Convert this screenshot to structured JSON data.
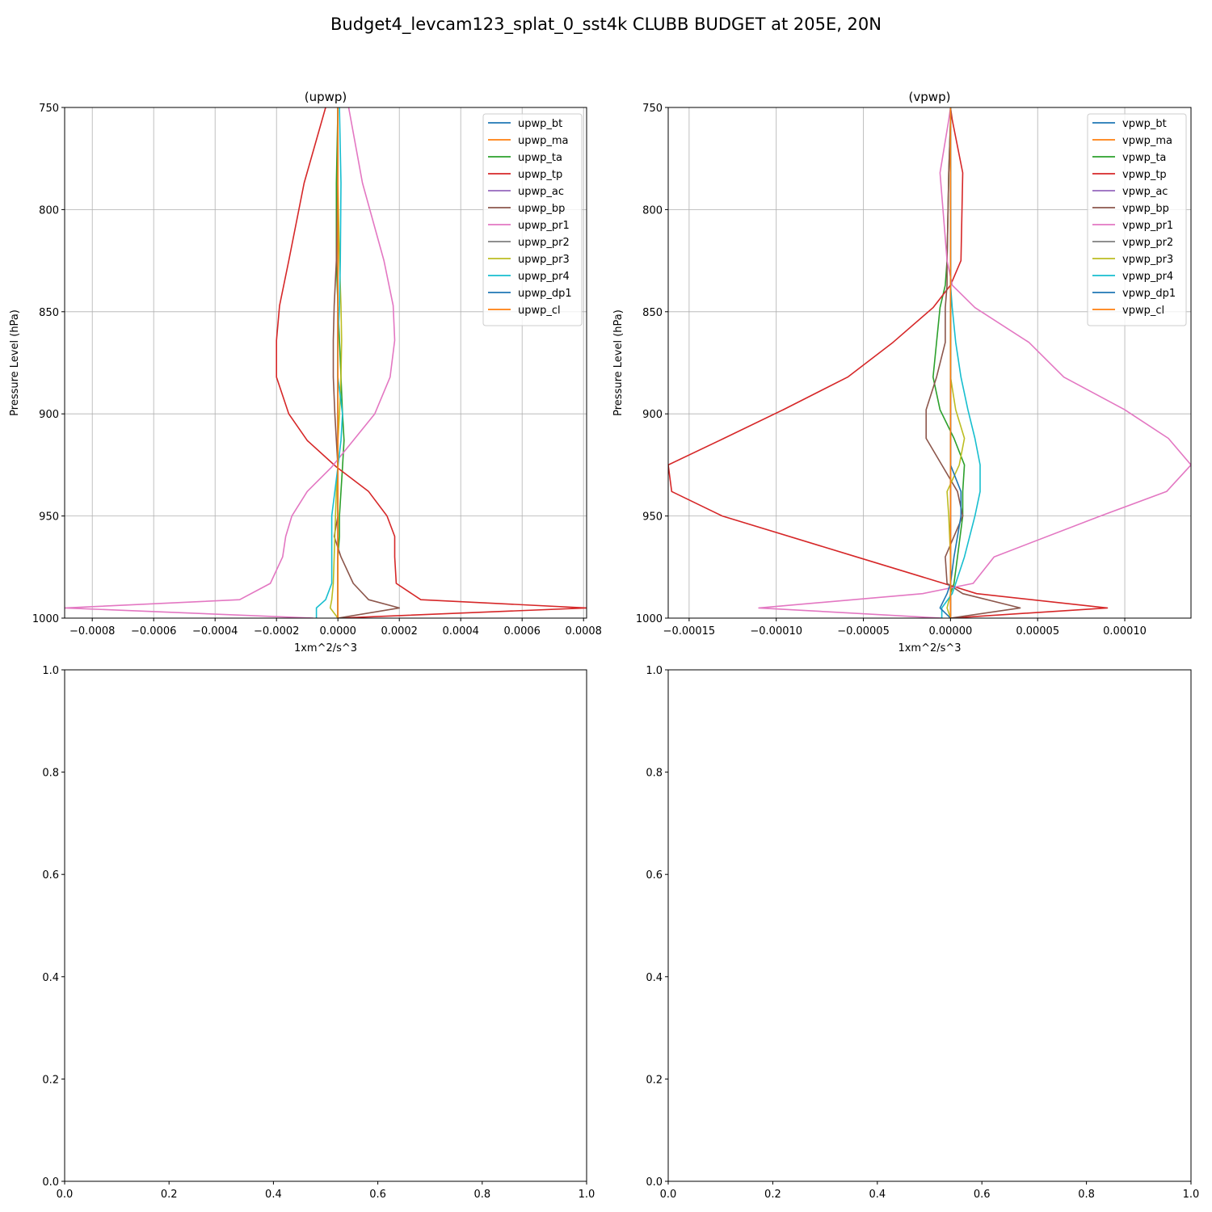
{
  "suptitle": "Budget4_levcam123_splat_0_sst4k CLUBB BUDGET at 205E, 20N",
  "colors": [
    "#1f77b4",
    "#ff7f0e",
    "#2ca02c",
    "#d62728",
    "#9467bd",
    "#8c564b",
    "#e377c2",
    "#7f7f7f",
    "#bcbd22",
    "#17becf",
    "#1f77b4",
    "#ff7f0e"
  ],
  "chart_data": [
    {
      "type": "line",
      "title": "(upwp)",
      "xlabel": "1xm^2/s^3",
      "ylabel": "Pressure Level (hPa)",
      "xlim": [
        -0.00089,
        0.00081
      ],
      "ylim": [
        1000,
        750
      ],
      "xticks": [
        "−0.0008",
        "−0.0006",
        "−0.0004",
        "−0.0002",
        "0.0000",
        "0.0002",
        "0.0004",
        "0.0006",
        "0.0008"
      ],
      "xtick_values": [
        -0.0008,
        -0.0006,
        -0.0004,
        -0.0002,
        0,
        0.0002,
        0.0004,
        0.0006,
        0.0008
      ],
      "yticks": [
        "750",
        "800",
        "850",
        "900",
        "950",
        "1000"
      ],
      "ytick_values": [
        750,
        800,
        850,
        900,
        950,
        1000
      ],
      "grid": true,
      "legend": "top-right",
      "levels": [
        750,
        787,
        825,
        847,
        864,
        882,
        900,
        913,
        926,
        938,
        950,
        960,
        970,
        983,
        991,
        995,
        1000
      ],
      "series": [
        {
          "name": "upwp_bt",
          "values": [
            0,
            0,
            0,
            0,
            0,
            0,
            0,
            0,
            0,
            0,
            0,
            0,
            0,
            0,
            0,
            0,
            0
          ]
        },
        {
          "name": "upwp_ma",
          "values": [
            0,
            0,
            0,
            0,
            0,
            0,
            0,
            0,
            0,
            0,
            0,
            0,
            0,
            0,
            0,
            0,
            0
          ]
        },
        {
          "name": "upwp_ta",
          "values": [
            0,
            -5e-06,
            -5e-06,
            0,
            5e-06,
            1e-05,
            1.5e-05,
            2e-05,
            1.5e-05,
            1e-05,
            5e-06,
            5e-06,
            0,
            0,
            0,
            0,
            0
          ]
        },
        {
          "name": "upwp_tp",
          "values": [
            -4e-05,
            -0.00011,
            -0.00016,
            -0.00019,
            -0.0002,
            -0.0002,
            -0.00016,
            -0.0001,
            -5e-06,
            0.0001,
            0.00016,
            0.000185,
            0.000185,
            0.00019,
            0.00027,
            0.00081,
            0
          ]
        },
        {
          "name": "upwp_ac",
          "values": [
            0,
            0,
            0,
            0,
            0,
            0,
            0,
            0,
            0,
            0,
            0,
            0,
            0,
            0,
            0,
            0,
            0
          ]
        },
        {
          "name": "upwp_bp",
          "values": [
            0,
            0,
            -5e-06,
            -1.2e-05,
            -1.5e-05,
            -1.5e-05,
            -1e-05,
            -5e-06,
            0,
            0,
            0,
            -1.2e-05,
            1e-05,
            5e-05,
            0.0001,
            0.0002,
            0
          ]
        },
        {
          "name": "upwp_pr1",
          "values": [
            3.5e-05,
            8e-05,
            0.00015,
            0.00018,
            0.000185,
            0.00017,
            0.00012,
            5e-05,
            -2e-05,
            -0.0001,
            -0.00015,
            -0.00017,
            -0.00018,
            -0.00022,
            -0.00032,
            -0.00089,
            -8e-05
          ]
        },
        {
          "name": "upwp_pr2",
          "values": [
            0,
            0,
            0,
            0,
            0,
            0,
            0,
            0,
            0,
            0,
            0,
            0,
            0,
            0,
            0,
            0,
            0
          ]
        },
        {
          "name": "upwp_pr3",
          "values": [
            0,
            0,
            5e-06,
            1e-05,
            1.2e-05,
            1e-05,
            5e-06,
            0,
            0,
            -5e-06,
            -8e-06,
            -1e-05,
            -1.2e-05,
            -1.5e-05,
            -2e-05,
            -2.5e-05,
            0
          ]
        },
        {
          "name": "upwp_pr4",
          "values": [
            5e-06,
            1e-05,
            8e-06,
            5e-06,
            0,
            0,
            1.5e-05,
            1e-05,
            0,
            -1e-05,
            -2e-05,
            -2e-05,
            -2e-05,
            -2e-05,
            -4e-05,
            -7e-05,
            -7e-05
          ]
        },
        {
          "name": "upwp_dp1",
          "values": [
            0,
            0,
            0,
            0,
            0,
            0,
            0,
            0,
            0,
            0,
            0,
            0,
            0,
            0,
            0,
            0,
            0
          ]
        },
        {
          "name": "upwp_cl",
          "values": [
            0,
            0,
            0,
            0,
            0,
            0,
            0,
            0,
            0,
            0,
            0,
            0,
            0,
            0,
            0,
            0,
            0
          ]
        }
      ]
    },
    {
      "type": "line",
      "title": "(vpwp)",
      "xlabel": "1xm^2/s^3",
      "ylabel": "Pressure Level (hPa)",
      "xlim": [
        -0.000162,
        0.000138
      ],
      "ylim": [
        1000,
        750
      ],
      "xticks": [
        "−0.00015",
        "−0.00010",
        "−0.00005",
        "0.00000",
        "0.00005",
        "0.00010"
      ],
      "xtick_values": [
        -0.00015,
        -0.0001,
        -5e-05,
        0,
        5e-05,
        0.0001
      ],
      "yticks": [
        "750",
        "800",
        "850",
        "900",
        "950",
        "1000"
      ],
      "ytick_values": [
        750,
        800,
        850,
        900,
        950,
        1000
      ],
      "grid": true,
      "legend": "top-right",
      "levels": [
        750,
        756,
        782,
        825,
        837,
        848,
        865,
        882,
        898,
        912,
        925,
        938,
        950,
        970,
        983,
        988,
        995,
        1000
      ],
      "series": [
        {
          "name": "vpwp_bt",
          "values": [
            0,
            0,
            0,
            0,
            0,
            0,
            0,
            0,
            0,
            0,
            0,
            0,
            0,
            0,
            0,
            0,
            0,
            0
          ]
        },
        {
          "name": "vpwp_ma",
          "values": [
            0,
            0,
            0,
            0,
            0,
            0,
            0,
            0,
            0,
            0,
            0,
            0,
            0,
            0,
            0,
            0,
            0,
            0
          ]
        },
        {
          "name": "vpwp_ta",
          "values": [
            0,
            0,
            -1e-06,
            -2e-06,
            -3e-06,
            -6e-06,
            -8e-06,
            -1e-05,
            -6e-06,
            2e-06,
            8e-06,
            7e-06,
            7e-06,
            4e-06,
            2e-06,
            0,
            0,
            0
          ]
        },
        {
          "name": "vpwp_tp",
          "values": [
            0,
            1e-06,
            7e-06,
            6e-06,
            0,
            -1e-05,
            -3.3e-05,
            -5.9e-05,
            -9.6e-05,
            -0.00013,
            -0.000162,
            -0.00016,
            -0.000131,
            -5.4e-05,
            -4e-06,
            1.5e-05,
            9e-05,
            0
          ]
        },
        {
          "name": "vpwp_ac",
          "values": [
            0,
            0,
            0,
            0,
            0,
            0,
            0,
            0,
            0,
            0,
            0,
            0,
            0,
            0,
            0,
            0,
            0,
            0
          ]
        },
        {
          "name": "vpwp_bp",
          "values": [
            0,
            0,
            -1e-06,
            -2e-06,
            -2e-06,
            -3e-06,
            -3e-06,
            -8e-06,
            -1.4e-05,
            -1.4e-05,
            -5e-06,
            4e-06,
            7e-06,
            -3e-06,
            -2e-06,
            7e-06,
            4e-05,
            0
          ]
        },
        {
          "name": "vpwp_pr1",
          "values": [
            0,
            -1e-06,
            -6e-06,
            -2e-06,
            1e-06,
            1.4e-05,
            4.5e-05,
            6.5e-05,
            0.0001,
            0.000125,
            0.000138,
            0.000124,
            8.6e-05,
            2.5e-05,
            1.3e-05,
            -1.6e-05,
            -0.00011,
            -5e-06
          ]
        },
        {
          "name": "vpwp_pr2",
          "values": [
            0,
            0,
            0,
            0,
            0,
            0,
            0,
            0,
            0,
            0,
            0,
            0,
            0,
            0,
            0,
            0,
            0,
            0
          ]
        },
        {
          "name": "vpwp_pr3",
          "values": [
            0,
            0,
            0,
            0,
            0,
            0,
            0,
            0,
            3e-06,
            8e-06,
            5e-06,
            -2e-06,
            -1e-06,
            0,
            0,
            0,
            -2e-06,
            0
          ]
        },
        {
          "name": "vpwp_pr4",
          "values": [
            0,
            0,
            0,
            0,
            0,
            1e-06,
            3e-06,
            6e-06,
            1e-05,
            1.4e-05,
            1.7e-05,
            1.7e-05,
            1.4e-05,
            8e-06,
            3e-06,
            1e-06,
            -5e-06,
            -5e-06
          ]
        },
        {
          "name": "vpwp_dp1",
          "values": [
            0,
            0,
            0,
            0,
            0,
            0,
            0,
            0,
            0,
            0,
            0,
            6e-06,
            6e-06,
            2e-06,
            0,
            -2e-06,
            -6e-06,
            0
          ]
        },
        {
          "name": "vpwp_cl",
          "values": [
            0,
            0,
            0,
            0,
            0,
            0,
            0,
            0,
            0,
            0,
            0,
            0,
            0,
            0,
            0,
            0,
            0,
            0
          ]
        }
      ]
    },
    {
      "type": "line",
      "title": "",
      "xlim": [
        0,
        1
      ],
      "ylim": [
        0,
        1
      ],
      "xticks": [
        "0.0",
        "0.2",
        "0.4",
        "0.6",
        "0.8",
        "1.0"
      ],
      "xtick_values": [
        0,
        0.2,
        0.4,
        0.6,
        0.8,
        1.0
      ],
      "yticks": [
        "0.0",
        "0.2",
        "0.4",
        "0.6",
        "0.8",
        "1.0"
      ],
      "ytick_values": [
        0,
        0.2,
        0.4,
        0.6,
        0.8,
        1.0
      ],
      "grid": false,
      "series": []
    },
    {
      "type": "line",
      "title": "",
      "xlim": [
        0,
        1
      ],
      "ylim": [
        0,
        1
      ],
      "xticks": [
        "0.0",
        "0.2",
        "0.4",
        "0.6",
        "0.8",
        "1.0"
      ],
      "xtick_values": [
        0,
        0.2,
        0.4,
        0.6,
        0.8,
        1.0
      ],
      "yticks": [
        "0.0",
        "0.2",
        "0.4",
        "0.6",
        "0.8",
        "1.0"
      ],
      "ytick_values": [
        0,
        0.2,
        0.4,
        0.6,
        0.8,
        1.0
      ],
      "grid": false,
      "series": []
    }
  ]
}
